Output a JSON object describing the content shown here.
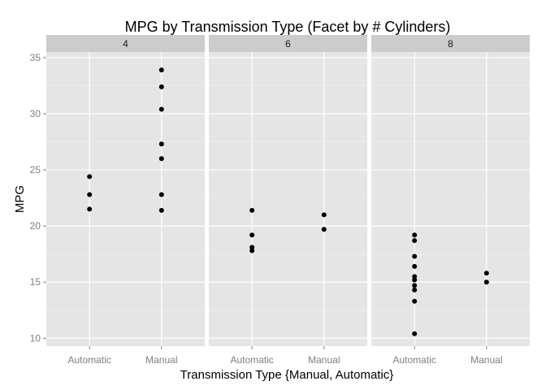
{
  "chart_data": {
    "type": "scatter",
    "title": "MPG by Transmission Type (Facet by # Cylinders)",
    "xlabel": "Transmission Type {Manual, Automatic}",
    "ylabel": "MPG",
    "categories": [
      "Automatic",
      "Manual"
    ],
    "ylim": [
      9.3,
      35.5
    ],
    "yticks": [
      10,
      15,
      20,
      25,
      30,
      35
    ],
    "grid": true,
    "facet_label": "# Cylinders",
    "facets": [
      {
        "label": "4",
        "points": [
          {
            "x": "Automatic",
            "y": 24.4
          },
          {
            "x": "Automatic",
            "y": 22.8
          },
          {
            "x": "Automatic",
            "y": 21.5
          },
          {
            "x": "Manual",
            "y": 33.9
          },
          {
            "x": "Manual",
            "y": 32.4
          },
          {
            "x": "Manual",
            "y": 30.4
          },
          {
            "x": "Manual",
            "y": 27.3
          },
          {
            "x": "Manual",
            "y": 26.0
          },
          {
            "x": "Manual",
            "y": 22.8
          },
          {
            "x": "Manual",
            "y": 21.4
          }
        ]
      },
      {
        "label": "6",
        "points": [
          {
            "x": "Automatic",
            "y": 21.4
          },
          {
            "x": "Automatic",
            "y": 19.2
          },
          {
            "x": "Automatic",
            "y": 18.1
          },
          {
            "x": "Automatic",
            "y": 17.8
          },
          {
            "x": "Manual",
            "y": 21.0
          },
          {
            "x": "Manual",
            "y": 19.7
          }
        ]
      },
      {
        "label": "8",
        "points": [
          {
            "x": "Automatic",
            "y": 19.2
          },
          {
            "x": "Automatic",
            "y": 18.7
          },
          {
            "x": "Automatic",
            "y": 17.3
          },
          {
            "x": "Automatic",
            "y": 16.4
          },
          {
            "x": "Automatic",
            "y": 15.5
          },
          {
            "x": "Automatic",
            "y": 15.2
          },
          {
            "x": "Automatic",
            "y": 14.7
          },
          {
            "x": "Automatic",
            "y": 14.3
          },
          {
            "x": "Automatic",
            "y": 13.3
          },
          {
            "x": "Automatic",
            "y": 10.4
          },
          {
            "x": "Manual",
            "y": 15.8
          },
          {
            "x": "Manual",
            "y": 15.0
          }
        ]
      }
    ],
    "colors": {
      "panel_background": "#e5e5e5",
      "strip_background": "#cccccc",
      "grid_major": "#ffffff",
      "grid_minor": "#f2f2f2",
      "point": "#000000",
      "tick_label": "#7f7f7f"
    }
  }
}
